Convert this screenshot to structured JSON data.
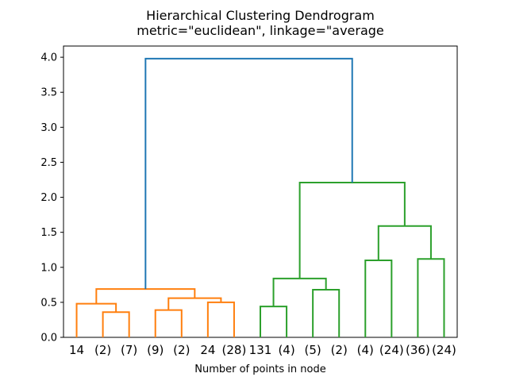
{
  "title": {
    "line1": "Hierarchical Clustering Dendrogram",
    "line2": "metric=\"euclidean\", linkage=\"average"
  },
  "chart_data": {
    "type": "dendrogram",
    "title": "Hierarchical Clustering Dendrogram",
    "subtitle": "metric=\"euclidean\", linkage=\"average",
    "xlabel": "Number of points in node",
    "ylabel": "",
    "xlim": [
      0,
      150
    ],
    "ylim": [
      0,
      4.16
    ],
    "grid": false,
    "yticks": [
      {
        "value": 0.0,
        "label": "0.0"
      },
      {
        "value": 0.5,
        "label": "0.5"
      },
      {
        "value": 1.0,
        "label": "1.0"
      },
      {
        "value": 1.5,
        "label": "1.5"
      },
      {
        "value": 2.0,
        "label": "2.0"
      },
      {
        "value": 2.5,
        "label": "2.5"
      },
      {
        "value": 3.0,
        "label": "3.0"
      },
      {
        "value": 3.5,
        "label": "3.5"
      },
      {
        "value": 4.0,
        "label": "4.0"
      }
    ],
    "leaves": [
      {
        "label": "14",
        "x": 5
      },
      {
        "label": "(2)",
        "x": 15
      },
      {
        "label": "(7)",
        "x": 25
      },
      {
        "label": "(9)",
        "x": 35
      },
      {
        "label": "(2)",
        "x": 45
      },
      {
        "label": "24",
        "x": 55
      },
      {
        "label": "(28)",
        "x": 65
      },
      {
        "label": "131",
        "x": 75
      },
      {
        "label": "(4)",
        "x": 85
      },
      {
        "label": "(5)",
        "x": 95
      },
      {
        "label": "(2)",
        "x": 105
      },
      {
        "label": "(4)",
        "x": 115
      },
      {
        "label": "(24)",
        "x": 125
      },
      {
        "label": "(36)",
        "x": 135
      },
      {
        "label": "(24)",
        "x": 145
      }
    ],
    "links": [
      {
        "x1": 15,
        "h1": 0,
        "x2": 25,
        "h2": 0,
        "h": 0.36,
        "color": "#ff7f0e"
      },
      {
        "x1": 5,
        "h1": 0,
        "x2": 20,
        "h2": 0.36,
        "h": 0.48,
        "color": "#ff7f0e"
      },
      {
        "x1": 35,
        "h1": 0,
        "x2": 45,
        "h2": 0,
        "h": 0.39,
        "color": "#ff7f0e"
      },
      {
        "x1": 55,
        "h1": 0,
        "x2": 65,
        "h2": 0,
        "h": 0.5,
        "color": "#ff7f0e"
      },
      {
        "x1": 40,
        "h1": 0.39,
        "x2": 60,
        "h2": 0.5,
        "h": 0.56,
        "color": "#ff7f0e"
      },
      {
        "x1": 12.5,
        "h1": 0.48,
        "x2": 50,
        "h2": 0.56,
        "h": 0.69,
        "color": "#ff7f0e"
      },
      {
        "x1": 75,
        "h1": 0,
        "x2": 85,
        "h2": 0,
        "h": 0.44,
        "color": "#2ca02c"
      },
      {
        "x1": 95,
        "h1": 0,
        "x2": 105,
        "h2": 0,
        "h": 0.68,
        "color": "#2ca02c"
      },
      {
        "x1": 80,
        "h1": 0.44,
        "x2": 100,
        "h2": 0.68,
        "h": 0.84,
        "color": "#2ca02c"
      },
      {
        "x1": 115,
        "h1": 0,
        "x2": 125,
        "h2": 0,
        "h": 1.1,
        "color": "#2ca02c"
      },
      {
        "x1": 135,
        "h1": 0,
        "x2": 145,
        "h2": 0,
        "h": 1.12,
        "color": "#2ca02c"
      },
      {
        "x1": 120,
        "h1": 1.1,
        "x2": 140,
        "h2": 1.12,
        "h": 1.59,
        "color": "#2ca02c"
      },
      {
        "x1": 90,
        "h1": 0.84,
        "x2": 130,
        "h2": 1.59,
        "h": 2.21,
        "color": "#2ca02c"
      },
      {
        "x1": 31.25,
        "h1": 0.69,
        "x2": 110,
        "h2": 2.21,
        "h": 3.98,
        "color": "#1f77b4"
      }
    ],
    "colors": {
      "root_link": "#1f77b4",
      "left_cluster": "#ff7f0e",
      "right_cluster": "#2ca02c",
      "axis": "#000000",
      "text": "#000000"
    }
  }
}
